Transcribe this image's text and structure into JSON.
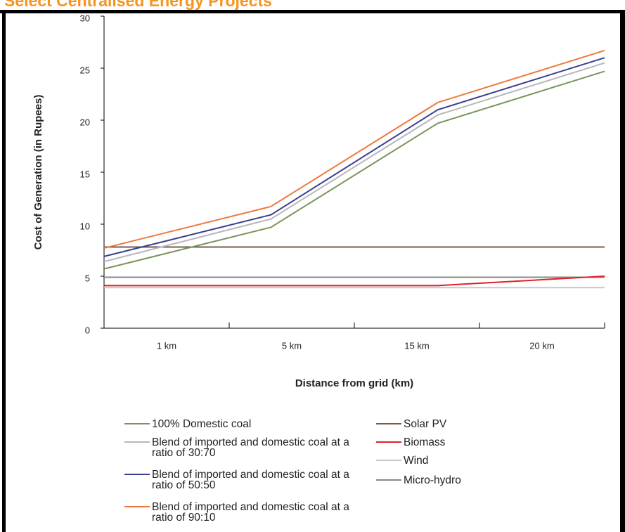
{
  "chart_data": {
    "type": "line",
    "title": "Select Centralised Energy Projects",
    "x_label": "Distance from grid (km)",
    "y_label": "Cost of Generation (in Rupees)",
    "categories": [
      "1 km",
      "5 km",
      "15 km",
      "20 km"
    ],
    "ylim": [
      0,
      30
    ],
    "yticks": [
      0,
      5,
      10,
      15,
      20,
      25,
      30
    ],
    "series": [
      {
        "name": "100% Domestic coal",
        "color": "#78955a",
        "values": [
          5.7,
          9.7,
          19.7,
          24.7
        ]
      },
      {
        "name": "Blend of imported and domestic coal at a ratio of 30:70",
        "color": "#b8b8b8",
        "values": [
          6.4,
          10.5,
          20.5,
          25.5
        ]
      },
      {
        "name": "Blend of imported and domestic coal at a ratio of 50:50",
        "color": "#3b3f8f",
        "values": [
          6.9,
          10.9,
          21.0,
          26.0
        ]
      },
      {
        "name": "Blend of imported and domestic coal at a ratio of 90:10",
        "color": "#ee7a3b",
        "values": [
          7.7,
          11.7,
          21.7,
          26.7
        ]
      },
      {
        "name": "Solar PV",
        "color": "#7b5a4c",
        "values": [
          7.8,
          7.8,
          7.8,
          7.8
        ]
      },
      {
        "name": "Biomass",
        "color": "#e0202a",
        "values": [
          4.1,
          4.1,
          4.1,
          5.0
        ]
      },
      {
        "name": "Wind",
        "color": "#c8c8c8",
        "values": [
          3.9,
          3.9,
          3.9,
          3.9
        ]
      },
      {
        "name": "Micro-hydro",
        "color": "#8a8a8a",
        "values": [
          4.9,
          4.9,
          4.9,
          4.9
        ]
      }
    ]
  }
}
